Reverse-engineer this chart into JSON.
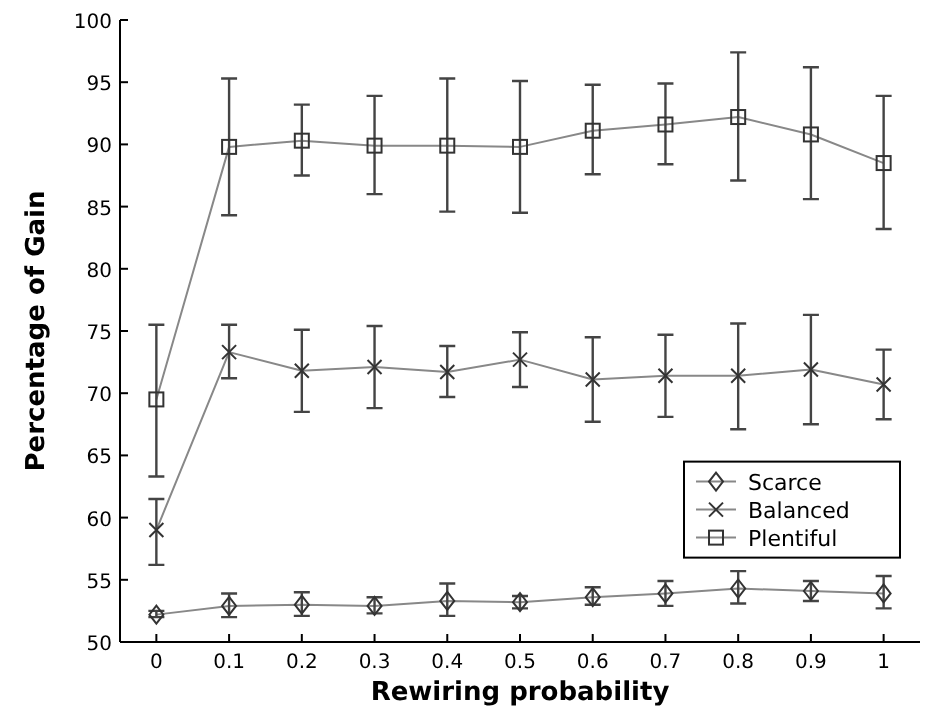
{
  "chart_data": {
    "type": "line",
    "xlabel": "Rewiring probability",
    "ylabel": "Percentage of Gain",
    "x": [
      0,
      0.1,
      0.2,
      0.3,
      0.4,
      0.5,
      0.6,
      0.7,
      0.8,
      0.9,
      1
    ],
    "xlim": [
      -0.05,
      1.05
    ],
    "xticks": [
      0,
      0.1,
      0.2,
      0.3,
      0.4,
      0.5,
      0.6,
      0.7,
      0.8,
      0.9,
      1
    ],
    "ylim": [
      50,
      100
    ],
    "yticks": [
      50,
      55,
      60,
      65,
      70,
      75,
      80,
      85,
      90,
      95,
      100
    ],
    "grid": false,
    "legend": "bottom right",
    "line_style": "solid",
    "series": [
      {
        "name": "Scarce",
        "color": "#888888",
        "marker": "diamond",
        "values": [
          52.2,
          52.9,
          53,
          52.9,
          53.3,
          53.2,
          53.6,
          53.9,
          54.3,
          54.1,
          53.9
        ],
        "errors": [
          [
            52,
            52.5
          ],
          [
            52,
            53.9
          ],
          [
            52.1,
            54
          ],
          [
            52.3,
            53.6
          ],
          [
            52.1,
            54.7
          ],
          [
            52.7,
            53.7
          ],
          [
            53,
            54.4
          ],
          [
            52.9,
            54.9
          ],
          [
            53.1,
            55.7
          ],
          [
            53.3,
            54.9
          ],
          [
            52.7,
            55.3
          ]
        ]
      },
      {
        "name": "Balanced",
        "color": "#888888",
        "marker": "cross",
        "values": [
          59,
          73.3,
          71.8,
          72.1,
          71.7,
          72.7,
          71.1,
          71.4,
          71.4,
          71.9,
          70.7
        ],
        "errors": [
          [
            56.2,
            61.5
          ],
          [
            71.2,
            75.5
          ],
          [
            68.5,
            75.1
          ],
          [
            68.8,
            75.4
          ],
          [
            69.7,
            73.8
          ],
          [
            70.5,
            74.9
          ],
          [
            67.7,
            74.5
          ],
          [
            68.1,
            74.7
          ],
          [
            67.1,
            75.6
          ],
          [
            67.5,
            76.3
          ],
          [
            67.9,
            73.5
          ]
        ]
      },
      {
        "name": "Plentiful",
        "color": "#888888",
        "marker": "square",
        "values": [
          69.5,
          89.8,
          90.3,
          89.9,
          89.9,
          89.8,
          91.1,
          91.6,
          92.2,
          90.8,
          88.5
        ],
        "errors": [
          [
            63.3,
            75.5
          ],
          [
            84.3,
            95.3
          ],
          [
            87.5,
            93.2
          ],
          [
            86,
            93.9
          ],
          [
            84.6,
            95.3
          ],
          [
            84.5,
            95.1
          ],
          [
            87.6,
            94.8
          ],
          [
            88.4,
            94.9
          ],
          [
            87.1,
            97.4
          ],
          [
            85.6,
            96.2
          ],
          [
            83.2,
            93.9
          ]
        ]
      }
    ]
  }
}
